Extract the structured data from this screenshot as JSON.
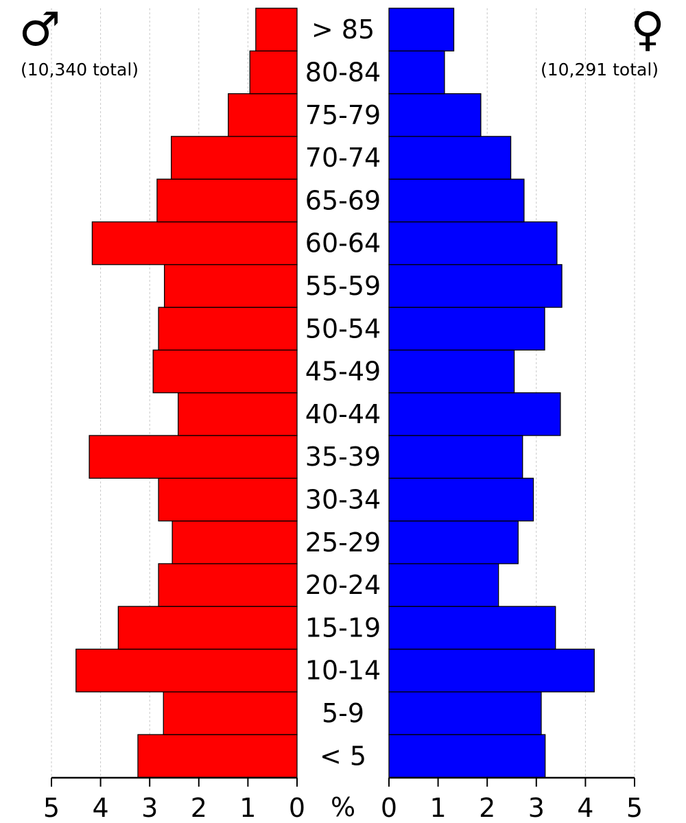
{
  "chart_data": {
    "type": "bar",
    "orientation": "horizontal",
    "categories": [
      "< 5",
      "5-9",
      "10-14",
      "15-19",
      "20-24",
      "25-29",
      "30-34",
      "35-39",
      "40-44",
      "45-49",
      "50-54",
      "55-59",
      "60-64",
      "65-69",
      "70-74",
      "75-79",
      "80-84",
      "> 85"
    ],
    "series": [
      {
        "symbol": "♂",
        "total_label": "(10,340 total)",
        "color": "#ff0000",
        "values": [
          3.24,
          2.72,
          4.5,
          3.64,
          2.82,
          2.54,
          2.82,
          4.23,
          2.42,
          2.93,
          2.82,
          2.7,
          4.17,
          2.85,
          2.56,
          1.4,
          0.96,
          0.84
        ]
      },
      {
        "symbol": "♀",
        "total_label": "(10,291 total)",
        "color": "#0000ff",
        "values": [
          3.18,
          3.1,
          4.18,
          3.39,
          2.23,
          2.63,
          2.94,
          2.72,
          3.49,
          2.55,
          3.17,
          3.52,
          3.42,
          2.75,
          2.48,
          1.87,
          1.13,
          1.32
        ]
      }
    ],
    "x_ticks": [
      "0",
      "1",
      "2",
      "3",
      "4",
      "5"
    ],
    "unit_label": "%",
    "xlim": [
      0,
      5
    ],
    "grid": "vertical dashed"
  }
}
